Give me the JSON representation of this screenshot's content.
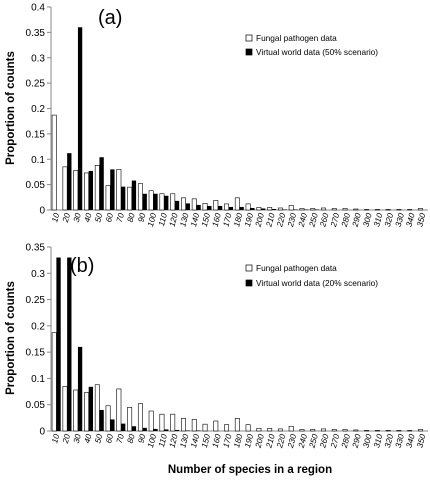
{
  "figure": {
    "xlabel": "Number of species in a region"
  },
  "chart_data": [
    {
      "type": "bar",
      "panel_label": "(a)",
      "ylabel": "Proportion of counts",
      "ylim": [
        0,
        0.4
      ],
      "yticks": [
        0,
        0.05,
        0.1,
        0.15,
        0.2,
        0.25,
        0.3,
        0.35,
        0.4
      ],
      "ytick_labels": [
        "0",
        "0.05",
        "0.1",
        "0.15",
        "0.2",
        "0.25",
        "0.3",
        "0.35",
        "0.4"
      ],
      "categories": [
        "10",
        "20",
        "30",
        "40",
        "50",
        "60",
        "70",
        "80",
        "90",
        "100",
        "110",
        "120",
        "130",
        "140",
        "150",
        "160",
        "170",
        "180",
        "190",
        "200",
        "210",
        "220",
        "230",
        "240",
        "250",
        "260",
        "270",
        "280",
        "290",
        "300",
        "310",
        "320",
        "330",
        "340",
        "350"
      ],
      "legend_position": "top-right",
      "series": [
        {
          "name": "Fungal pathogen data",
          "style": "white",
          "values": [
            0.187,
            0.085,
            0.078,
            0.073,
            0.088,
            0.048,
            0.08,
            0.045,
            0.052,
            0.038,
            0.032,
            0.032,
            0.024,
            0.022,
            0.013,
            0.019,
            0.012,
            0.024,
            0.012,
            0.005,
            0.005,
            0.004,
            0.009,
            0.003,
            0.003,
            0.004,
            0.003,
            0.003,
            0.002,
            0.001,
            0.001,
            0.001,
            0.001,
            0.001,
            0.003
          ]
        },
        {
          "name": "Virtual world data (50% scenario)",
          "style": "black",
          "values": [
            0.0,
            0.112,
            0.36,
            0.077,
            0.104,
            0.08,
            0.046,
            0.058,
            0.032,
            0.032,
            0.028,
            0.018,
            0.013,
            0.01,
            0.008,
            0.008,
            0.006,
            0.006,
            0.004,
            0.003,
            0.002,
            0.001,
            0.001,
            0.001,
            0.001,
            0.0,
            0.0,
            0.0,
            0.0,
            0.0,
            0.0,
            0.0,
            0.0,
            0.0,
            0.0
          ]
        }
      ]
    },
    {
      "type": "bar",
      "panel_label": "(b)",
      "ylabel": "Proportion of counts",
      "ylim": [
        0,
        0.35
      ],
      "yticks": [
        0,
        0.05,
        0.1,
        0.15,
        0.2,
        0.25,
        0.3,
        0.35
      ],
      "ytick_labels": [
        "0",
        "0.05",
        "0.1",
        "0.15",
        "0.2",
        "0.25",
        "0.3",
        "0.35"
      ],
      "categories": [
        "10",
        "20",
        "30",
        "40",
        "50",
        "60",
        "70",
        "80",
        "90",
        "100",
        "110",
        "120",
        "130",
        "140",
        "150",
        "160",
        "170",
        "180",
        "190",
        "200",
        "210",
        "220",
        "230",
        "240",
        "250",
        "260",
        "270",
        "280",
        "290",
        "300",
        "310",
        "320",
        "330",
        "340",
        "350"
      ],
      "legend_position": "top-right",
      "series": [
        {
          "name": "Fungal pathogen data",
          "style": "white",
          "values": [
            0.187,
            0.085,
            0.078,
            0.073,
            0.088,
            0.048,
            0.08,
            0.045,
            0.052,
            0.038,
            0.032,
            0.032,
            0.024,
            0.022,
            0.013,
            0.019,
            0.012,
            0.024,
            0.012,
            0.005,
            0.005,
            0.004,
            0.009,
            0.003,
            0.003,
            0.004,
            0.003,
            0.003,
            0.002,
            0.001,
            0.001,
            0.001,
            0.001,
            0.001,
            0.003
          ]
        },
        {
          "name": "Virtual world data (20% scenario)",
          "style": "black",
          "values": [
            0.33,
            0.33,
            0.16,
            0.084,
            0.04,
            0.022,
            0.014,
            0.009,
            0.006,
            0.004,
            0.003,
            0.002,
            0.001,
            0.001,
            0.0,
            0.0,
            0.0,
            0.0,
            0.0,
            0.0,
            0.0,
            0.0,
            0.0,
            0.0,
            0.0,
            0.0,
            0.0,
            0.0,
            0.0,
            0.0,
            0.0,
            0.0,
            0.0,
            0.0,
            0.0
          ]
        }
      ]
    }
  ]
}
